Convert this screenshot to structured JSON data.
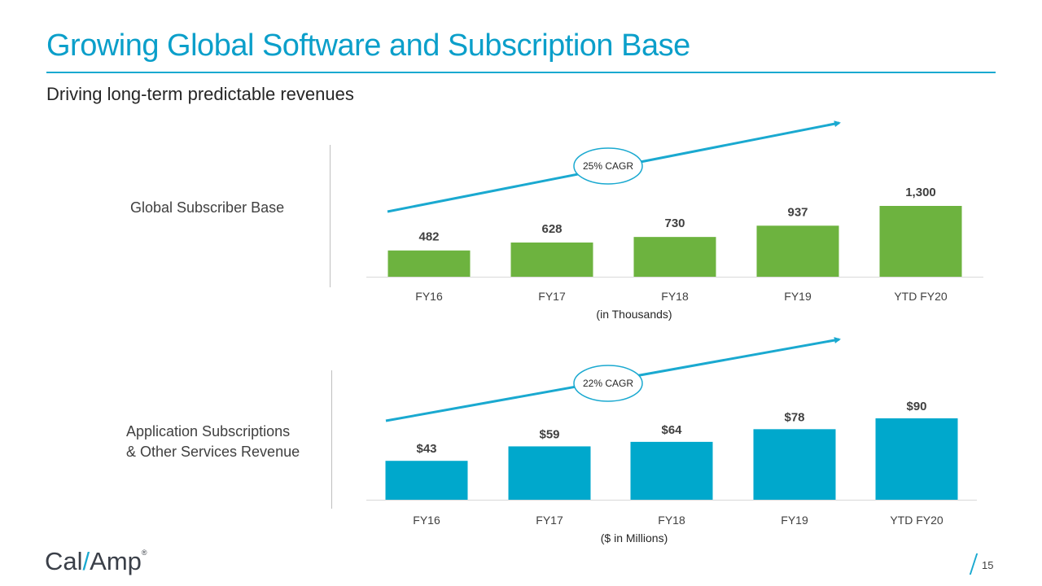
{
  "title": "Growing Global Software and Subscription Base",
  "subtitle": "Driving long-term predictable revenues",
  "page_number": "15",
  "logo": {
    "part1": "Cal",
    "slash": "/",
    "part2": "Amp",
    "mark": "®"
  },
  "colors": {
    "title": "#0b9fca",
    "green_bar": "#6db33f",
    "blue_bar": "#00a8cc",
    "arrow": "#1aa9d0"
  },
  "charts": [
    {
      "label_lines": [
        "Global Subscriber Base"
      ],
      "cagr": "25% CAGR",
      "unit_note": "(in Thousands)"
    },
    {
      "label_lines": [
        "Application Subscriptions",
        "& Other Services Revenue"
      ],
      "cagr": "22% CAGR",
      "unit_note": "($ in Millions)"
    }
  ],
  "chart_data": [
    {
      "type": "bar",
      "categories": [
        "FY16",
        "FY17",
        "FY18",
        "FY19",
        "YTD FY20"
      ],
      "values": [
        482,
        628,
        730,
        937,
        1300
      ],
      "data_labels": [
        "482",
        "628",
        "730",
        "937",
        "1,300"
      ],
      "title": "Global Subscriber Base",
      "xlabel": "(in Thousands)",
      "ylabel": "",
      "ylim": [
        0,
        1300
      ],
      "annotation": "25% CAGR",
      "grid": false,
      "color": "#6db33f"
    },
    {
      "type": "bar",
      "categories": [
        "FY16",
        "FY17",
        "FY18",
        "FY19",
        "YTD FY20"
      ],
      "values": [
        43,
        59,
        64,
        78,
        90
      ],
      "data_labels": [
        "$43",
        "$59",
        "$64",
        "$78",
        "$90"
      ],
      "title": "Application Subscriptions & Other Services Revenue",
      "xlabel": "($ in Millions)",
      "ylabel": "",
      "ylim": [
        0,
        90
      ],
      "annotation": "22% CAGR",
      "grid": false,
      "color": "#00a8cc"
    }
  ]
}
